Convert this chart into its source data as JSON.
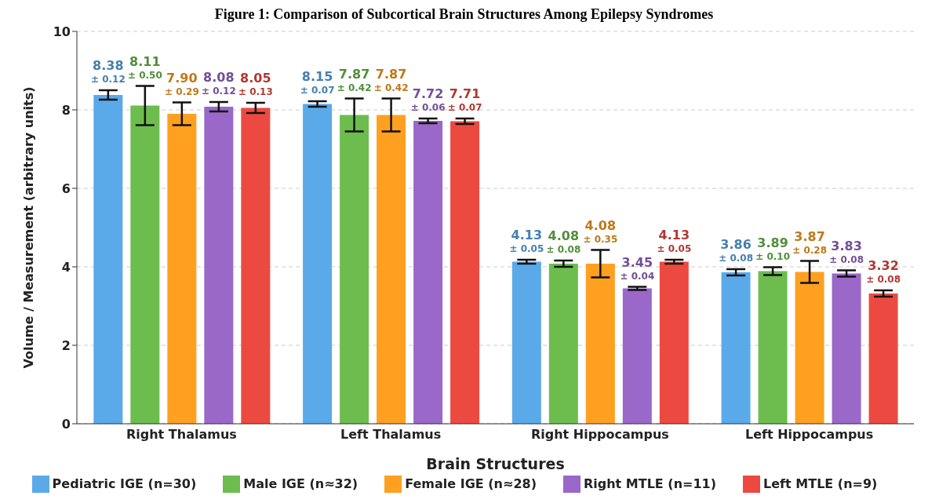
{
  "chart_data": {
    "type": "bar",
    "title": "Figure 1: Comparison of Subcortical Brain Structures Among Epilepsy Syndromes",
    "xlabel": "Brain Structures",
    "ylabel": "Volume / Measurement (arbitrary units)",
    "categories": [
      "Right Thalamus",
      "Left Thalamus",
      "Right Hippocampus",
      "Left Hippocampus"
    ],
    "series": [
      {
        "name": "Pediatric IGE (n=30)",
        "color": "#5aaaea",
        "values": [
          8.38,
          8.15,
          4.13,
          3.86
        ],
        "errors": [
          0.12,
          0.07,
          0.05,
          0.08
        ],
        "value_labels": [
          "8.38\n± 0.12",
          "8.15\n± 0.07",
          "4.13\n± 0.05",
          "3.86\n± 0.08"
        ]
      },
      {
        "name": "Male IGE (n≈32)",
        "color": "#6cbd4e",
        "values": [
          8.11,
          7.87,
          4.08,
          3.89
        ],
        "errors": [
          0.5,
          0.42,
          0.08,
          0.1
        ],
        "value_labels": [
          "8.11\n± 0.50",
          "7.87\n± 0.42",
          "4.08\n± 0.08",
          "3.89\n± 0.10"
        ]
      },
      {
        "name": "Female IGE (n≈28)",
        "color": "#ffa020",
        "values": [
          7.9,
          7.87,
          4.08,
          3.87
        ],
        "errors": [
          0.29,
          0.42,
          0.35,
          0.28
        ],
        "value_labels": [
          "7.90\n± 0.29",
          "7.87\n± 0.42",
          "4.08\n± 0.35",
          "3.87\n± 0.28"
        ]
      },
      {
        "name": "Right MTLE (n=11)",
        "color": "#9a68c8",
        "values": [
          8.08,
          7.72,
          3.45,
          3.83
        ],
        "errors": [
          0.12,
          0.06,
          0.04,
          0.08
        ],
        "value_labels": [
          "8.08\n± 0.12",
          "7.72\n± 0.06",
          "3.45\n± 0.04",
          "3.83\n± 0.08"
        ]
      },
      {
        "name": "Left MTLE (n=9)",
        "color": "#ec4a40",
        "values": [
          8.05,
          7.71,
          4.13,
          3.32
        ],
        "errors": [
          0.13,
          0.07,
          0.05,
          0.08
        ],
        "value_labels": [
          "8.05\n± 0.13",
          "7.71\n± 0.07",
          "4.13\n± 0.05",
          "3.32\n± 0.08"
        ]
      }
    ],
    "ylim": [
      0,
      10
    ],
    "yticks": [
      0,
      2,
      4,
      6,
      8,
      10
    ],
    "grid": "y",
    "legend": "bottom"
  }
}
